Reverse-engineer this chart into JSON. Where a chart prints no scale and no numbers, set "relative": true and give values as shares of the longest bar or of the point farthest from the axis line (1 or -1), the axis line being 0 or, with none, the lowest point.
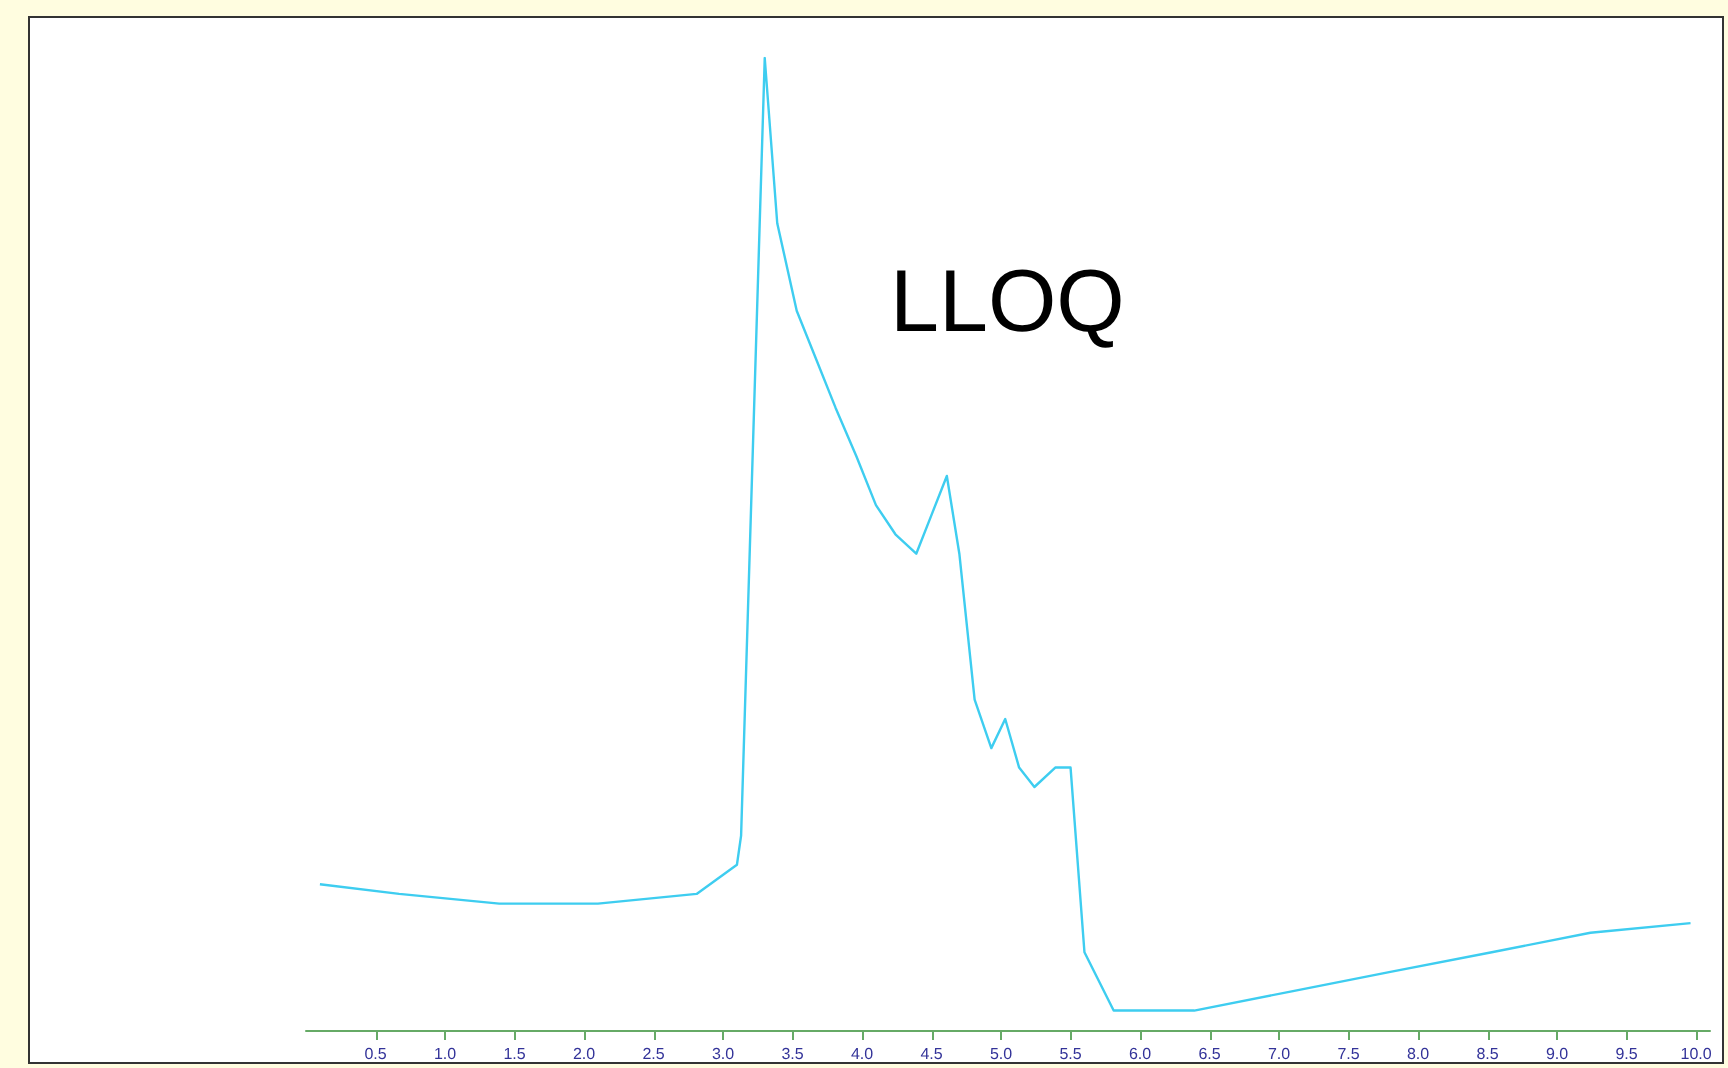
{
  "chart_data": {
    "type": "line",
    "relative": true,
    "tick_labels": "x",
    "grid": false,
    "marker": "none",
    "line_style": "solid",
    "annotations": [
      "LLOQ"
    ],
    "xlim": [
      0,
      10.1
    ],
    "xticks": [
      0.5,
      {
        "value": 1,
        "label": "1.0"
      },
      1.5,
      {
        "value": 2,
        "label": "2.0"
      },
      2.5,
      {
        "value": 3,
        "label": "3.0"
      },
      3.5,
      {
        "value": 4,
        "label": "4.0"
      },
      4.5,
      {
        "value": 5,
        "label": "5.0"
      },
      5.5,
      {
        "value": 6,
        "label": "6.0"
      },
      6.5,
      {
        "value": 7,
        "label": "7.0"
      },
      7.5,
      {
        "value": 8,
        "label": "8.0"
      },
      8.5,
      {
        "value": 9,
        "label": "9.0"
      },
      9.5,
      {
        "value": 10,
        "label": "10.0"
      }
    ],
    "x": [
      0.1,
      0.67,
      1.39,
      2.1,
      2.81,
      3.1,
      3.13,
      3.3,
      3.39,
      3.53,
      3.67,
      3.81,
      3.96,
      4.1,
      4.24,
      4.39,
      4.5,
      4.61,
      4.7,
      4.81,
      4.93,
      5.03,
      5.13,
      5.24,
      5.39,
      5.5,
      5.6,
      5.81,
      6.39,
      7.1,
      7.81,
      8.53,
      9.24,
      9.96
    ],
    "series": [
      {
        "color": "#3ecdf0",
        "values": [
          0.15,
          0.14,
          0.13,
          0.13,
          0.14,
          0.17,
          0.2,
          1.0,
          0.83,
          0.74,
          0.69,
          0.64,
          0.59,
          0.54,
          0.51,
          0.49,
          0.53,
          0.57,
          0.49,
          0.34,
          0.29,
          0.32,
          0.27,
          0.25,
          0.27,
          0.27,
          0.08,
          0.02,
          0.02,
          0.04,
          0.06,
          0.08,
          0.1,
          0.11
        ]
      }
    ]
  }
}
